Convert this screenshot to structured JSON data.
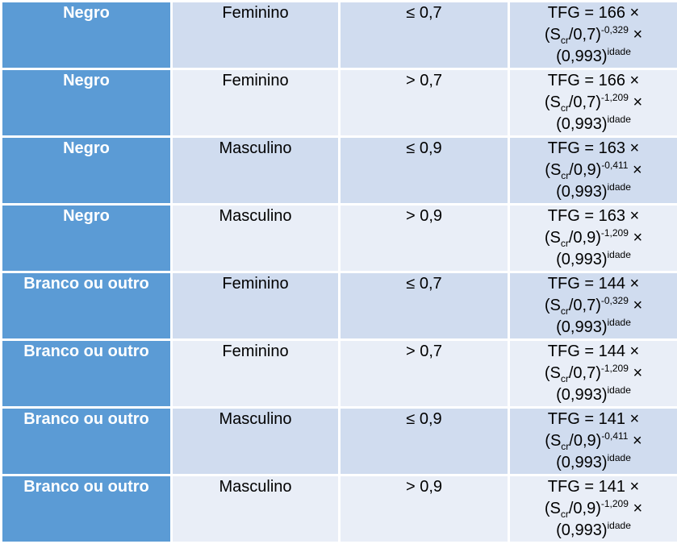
{
  "table": {
    "rows": [
      {
        "race": "Negro",
        "sex": "Feminino",
        "scr": "≤ 0,7",
        "formula": {
          "line1": "TFG = 166 ×",
          "base": "(S",
          "sub": "cr",
          "div": "/0,7)",
          "exp": "-0,329",
          "tail": " ×",
          "line3_base": "(0,993)",
          "line3_exp": "idade"
        }
      },
      {
        "race": "Negro",
        "sex": "Feminino",
        "scr": "> 0,7",
        "formula": {
          "line1": "TFG = 166 ×",
          "base": "(S",
          "sub": "cr",
          "div": "/0,7)",
          "exp": "-1,209",
          "tail": " ×",
          "line3_base": "(0,993)",
          "line3_exp": "idade"
        }
      },
      {
        "race": "Negro",
        "sex": "Masculino",
        "scr": "≤ 0,9",
        "formula": {
          "line1": "TFG = 163 ×",
          "base": "(S",
          "sub": "cr",
          "div": "/0,9)",
          "exp": "-0,411",
          "tail": " ×",
          "line3_base": "(0,993)",
          "line3_exp": "idade"
        }
      },
      {
        "race": "Negro",
        "sex": "Masculino",
        "scr": "> 0,9",
        "formula": {
          "line1": "TFG = 163 ×",
          "base": "(S",
          "sub": "cr",
          "div": "/0,9)",
          "exp": "-1,209",
          "tail": " ×",
          "line3_base": "(0,993)",
          "line3_exp": "idade"
        }
      },
      {
        "race": "Branco ou outro",
        "sex": "Feminino",
        "scr": "≤ 0,7",
        "formula": {
          "line1": "TFG = 144 ×",
          "base": "(S",
          "sub": "cr",
          "div": "/0,7)",
          "exp": "-0,329",
          "tail": " ×",
          "line3_base": "(0,993)",
          "line3_exp": "idade"
        }
      },
      {
        "race": "Branco ou outro",
        "sex": "Feminino",
        "scr": "> 0,7",
        "formula": {
          "line1": "TFG = 144 ×",
          "base": "(S",
          "sub": "cr",
          "div": "/0,7)",
          "exp": "-1,209",
          "tail": " ×",
          "line3_base": "(0,993)",
          "line3_exp": "idade"
        }
      },
      {
        "race": "Branco ou outro",
        "sex": "Masculino",
        "scr": "≤ 0,9",
        "formula": {
          "line1": "TFG = 141 ×",
          "base": "(S",
          "sub": "cr",
          "div": "/0,9)",
          "exp": "-0,411",
          "tail": " ×",
          "line3_base": "(0,993)",
          "line3_exp": "idade"
        }
      },
      {
        "race": "Branco ou outro",
        "sex": "Masculino",
        "scr": "> 0,9",
        "formula": {
          "line1": "TFG = 141 ×",
          "base": "(S",
          "sub": "cr",
          "div": "/0,9)",
          "exp": "-1,209",
          "tail": " ×",
          "line3_base": "(0,993)",
          "line3_exp": "idade"
        }
      }
    ]
  },
  "colors": {
    "race_column": "#5b9bd5",
    "row_odd": "#d0dcef",
    "row_even": "#e9eef7",
    "border": "#ffffff"
  }
}
